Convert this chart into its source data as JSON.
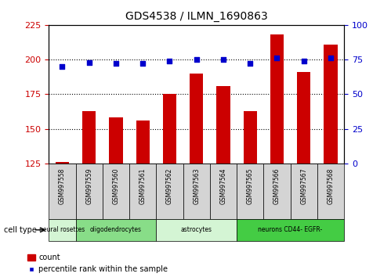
{
  "title": "GDS4538 / ILMN_1690863",
  "samples": [
    "GSM997558",
    "GSM997559",
    "GSM997560",
    "GSM997561",
    "GSM997562",
    "GSM997563",
    "GSM997564",
    "GSM997565",
    "GSM997566",
    "GSM997567",
    "GSM997568"
  ],
  "bar_values": [
    126,
    163,
    158,
    156,
    175,
    190,
    181,
    163,
    218,
    191,
    211
  ],
  "dot_values_right": [
    70,
    73,
    72,
    72,
    74,
    75,
    75,
    72,
    76,
    74,
    76
  ],
  "ylim_left": [
    125,
    225
  ],
  "ylim_right": [
    0,
    100
  ],
  "yticks_left": [
    125,
    150,
    175,
    200,
    225
  ],
  "yticks_right": [
    0,
    25,
    50,
    75,
    100
  ],
  "bar_color": "#cc0000",
  "dot_color": "#0000cc",
  "cell_types": [
    {
      "label": "neural rosettes",
      "span": [
        0,
        1
      ],
      "color": "#d4f5d4"
    },
    {
      "label": "oligodendrocytes",
      "span": [
        1,
        4
      ],
      "color": "#88dd88"
    },
    {
      "label": "astrocytes",
      "span": [
        4,
        7
      ],
      "color": "#d4f5d4"
    },
    {
      "label": "neurons CD44- EGFR-",
      "span": [
        7,
        11
      ],
      "color": "#44cc44"
    }
  ],
  "cell_type_label": "cell type",
  "legend_count_label": "count",
  "legend_percentile_label": "percentile rank within the sample",
  "bg_color": "#ffffff",
  "plot_bg": "#ffffff",
  "tick_label_color_left": "#cc0000",
  "tick_label_color_right": "#0000cc",
  "xlabel_box_color": "#d4d4d4",
  "bar_bottom": 125,
  "bar_width": 0.5
}
